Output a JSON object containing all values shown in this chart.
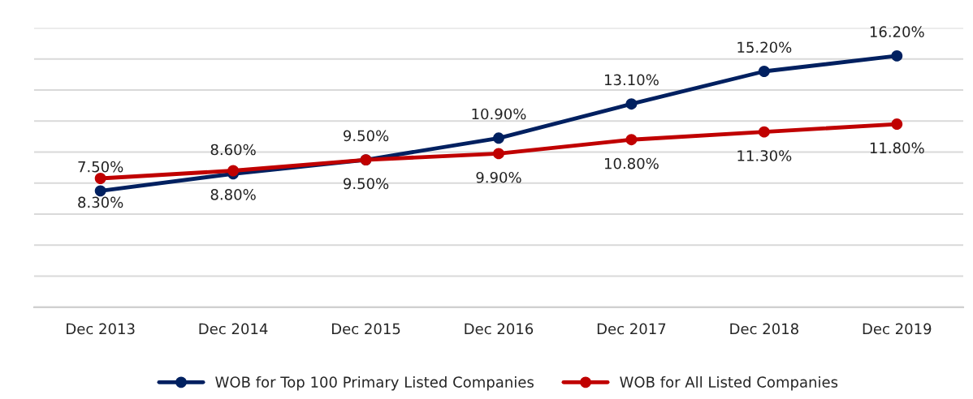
{
  "chart_data": {
    "type": "line",
    "categories": [
      "Dec 2013",
      "Dec 2014",
      "Dec 2015",
      "Dec 2016",
      "Dec 2017",
      "Dec 2018",
      "Dec 2019"
    ],
    "series": [
      {
        "name": "WOB for Top 100 Primary Listed Companies",
        "color": "#002060",
        "values": [
          7.5,
          8.6,
          9.5,
          10.9,
          13.1,
          15.2,
          16.2
        ],
        "value_labels": [
          "7.50%",
          "8.60%",
          "9.50%",
          "10.90%",
          "13.10%",
          "15.20%",
          "16.20%"
        ]
      },
      {
        "name": "WOB for All Listed Companies",
        "color": "#c00000",
        "values": [
          8.3,
          8.8,
          9.5,
          9.9,
          10.8,
          11.3,
          11.8
        ],
        "value_labels": [
          "8.30%",
          "8.80%",
          "9.50%",
          "9.90%",
          "10.80%",
          "11.30%",
          "11.80%"
        ]
      }
    ],
    "ylim": [
      0,
      18
    ],
    "yticks": [
      {
        "value": 0,
        "label": null
      },
      {
        "value": 2,
        "label": null
      },
      {
        "value": 4,
        "label": null
      },
      {
        "value": 6,
        "label": null
      },
      {
        "value": 8,
        "label": null
      },
      {
        "value": 10,
        "label": null
      },
      {
        "value": 12,
        "label": null
      },
      {
        "value": 14,
        "label": null
      },
      {
        "value": 16,
        "label": null
      },
      {
        "value": 18,
        "label": null
      }
    ],
    "tick_labels": "x",
    "grid": "y",
    "legend": "bottom",
    "marker": "circle",
    "line_style": "solid"
  }
}
